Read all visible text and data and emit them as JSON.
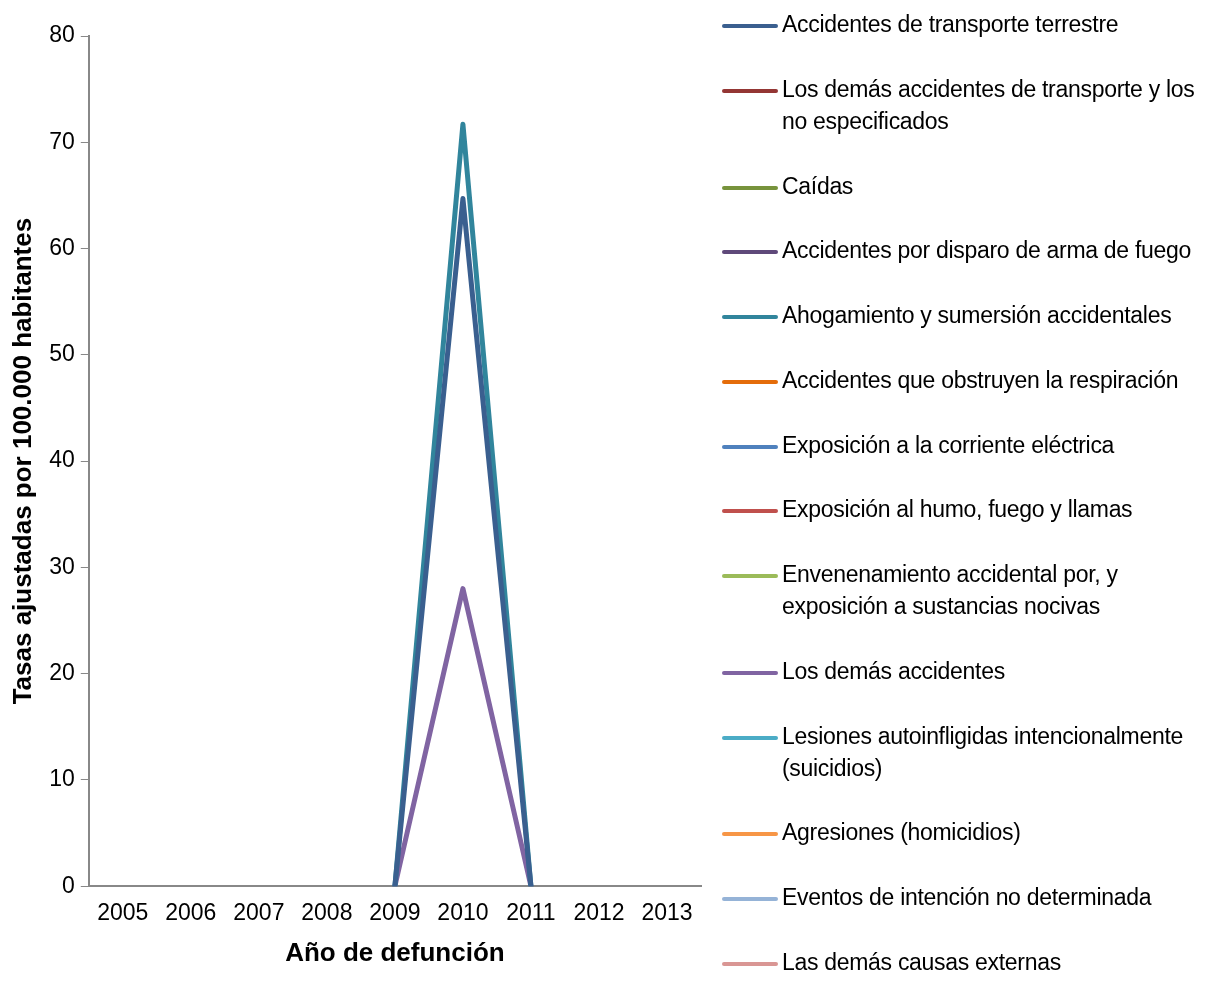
{
  "chart_data": {
    "type": "line",
    "xlabel": "Año de defunción",
    "ylabel": "Tasas ajustadas por 100.000 habitantes",
    "categories": [
      "2005",
      "2006",
      "2007",
      "2008",
      "2009",
      "2010",
      "2011",
      "2012",
      "2013"
    ],
    "ylim": [
      0,
      80
    ],
    "yticks": [
      0,
      10,
      20,
      30,
      40,
      50,
      60,
      70,
      80
    ],
    "grid": false,
    "legend": "right",
    "marker": "none",
    "line_style": "solid",
    "series": [
      {
        "name": "Accidentes de transporte terrestre",
        "color": "#3a5f8f",
        "values": [
          null,
          null,
          null,
          null,
          0,
          64.7,
          0,
          null,
          null
        ]
      },
      {
        "name": "Los demás accidentes de transporte y los no especificados",
        "color": "#943634",
        "values": [
          null,
          null,
          null,
          null,
          null,
          null,
          null,
          null,
          null
        ]
      },
      {
        "name": "Caídas",
        "color": "#77933c",
        "values": [
          null,
          null,
          null,
          null,
          null,
          null,
          null,
          null,
          null
        ]
      },
      {
        "name": "Accidentes por disparo de arma de fuego",
        "color": "#5f497a",
        "values": [
          null,
          null,
          null,
          null,
          null,
          null,
          null,
          null,
          null
        ]
      },
      {
        "name": "Ahogamiento y sumersión accidentales",
        "color": "#31859c",
        "values": [
          null,
          null,
          null,
          null,
          0,
          71.7,
          0,
          null,
          null
        ]
      },
      {
        "name": "Accidentes que obstruyen la respiración",
        "color": "#e46c0a",
        "values": [
          null,
          null,
          null,
          null,
          null,
          null,
          null,
          null,
          null
        ]
      },
      {
        "name": "Exposición a la corriente eléctrica",
        "color": "#4f81bd",
        "values": [
          null,
          null,
          null,
          null,
          null,
          null,
          null,
          null,
          null
        ]
      },
      {
        "name": "Exposición al humo, fuego y llamas",
        "color": "#c0504d",
        "values": [
          null,
          null,
          null,
          null,
          null,
          null,
          null,
          null,
          null
        ]
      },
      {
        "name": "Envenenamiento accidental por, y exposición a sustancias nocivas",
        "color": "#9bbb59",
        "values": [
          null,
          null,
          null,
          null,
          null,
          null,
          null,
          null,
          null
        ]
      },
      {
        "name": "Los demás accidentes",
        "color": "#8064a2",
        "values": [
          null,
          null,
          null,
          null,
          0,
          28,
          0,
          null,
          null
        ]
      },
      {
        "name": "Lesiones autoinfligidas intencionalmente (suicidios)",
        "color": "#4bacc6",
        "values": [
          null,
          null,
          null,
          null,
          null,
          null,
          null,
          null,
          null
        ]
      },
      {
        "name": "Agresiones (homicidios)",
        "color": "#f79646",
        "values": [
          null,
          null,
          null,
          null,
          null,
          null,
          null,
          null,
          null
        ]
      },
      {
        "name": "Eventos de intención no determinada",
        "color": "#95b3d7",
        "values": [
          null,
          null,
          null,
          null,
          null,
          null,
          null,
          null,
          null
        ]
      },
      {
        "name": "Las demás causas externas",
        "color": "#d99694",
        "values": [
          null,
          null,
          null,
          null,
          null,
          null,
          null,
          null,
          null
        ]
      }
    ]
  }
}
